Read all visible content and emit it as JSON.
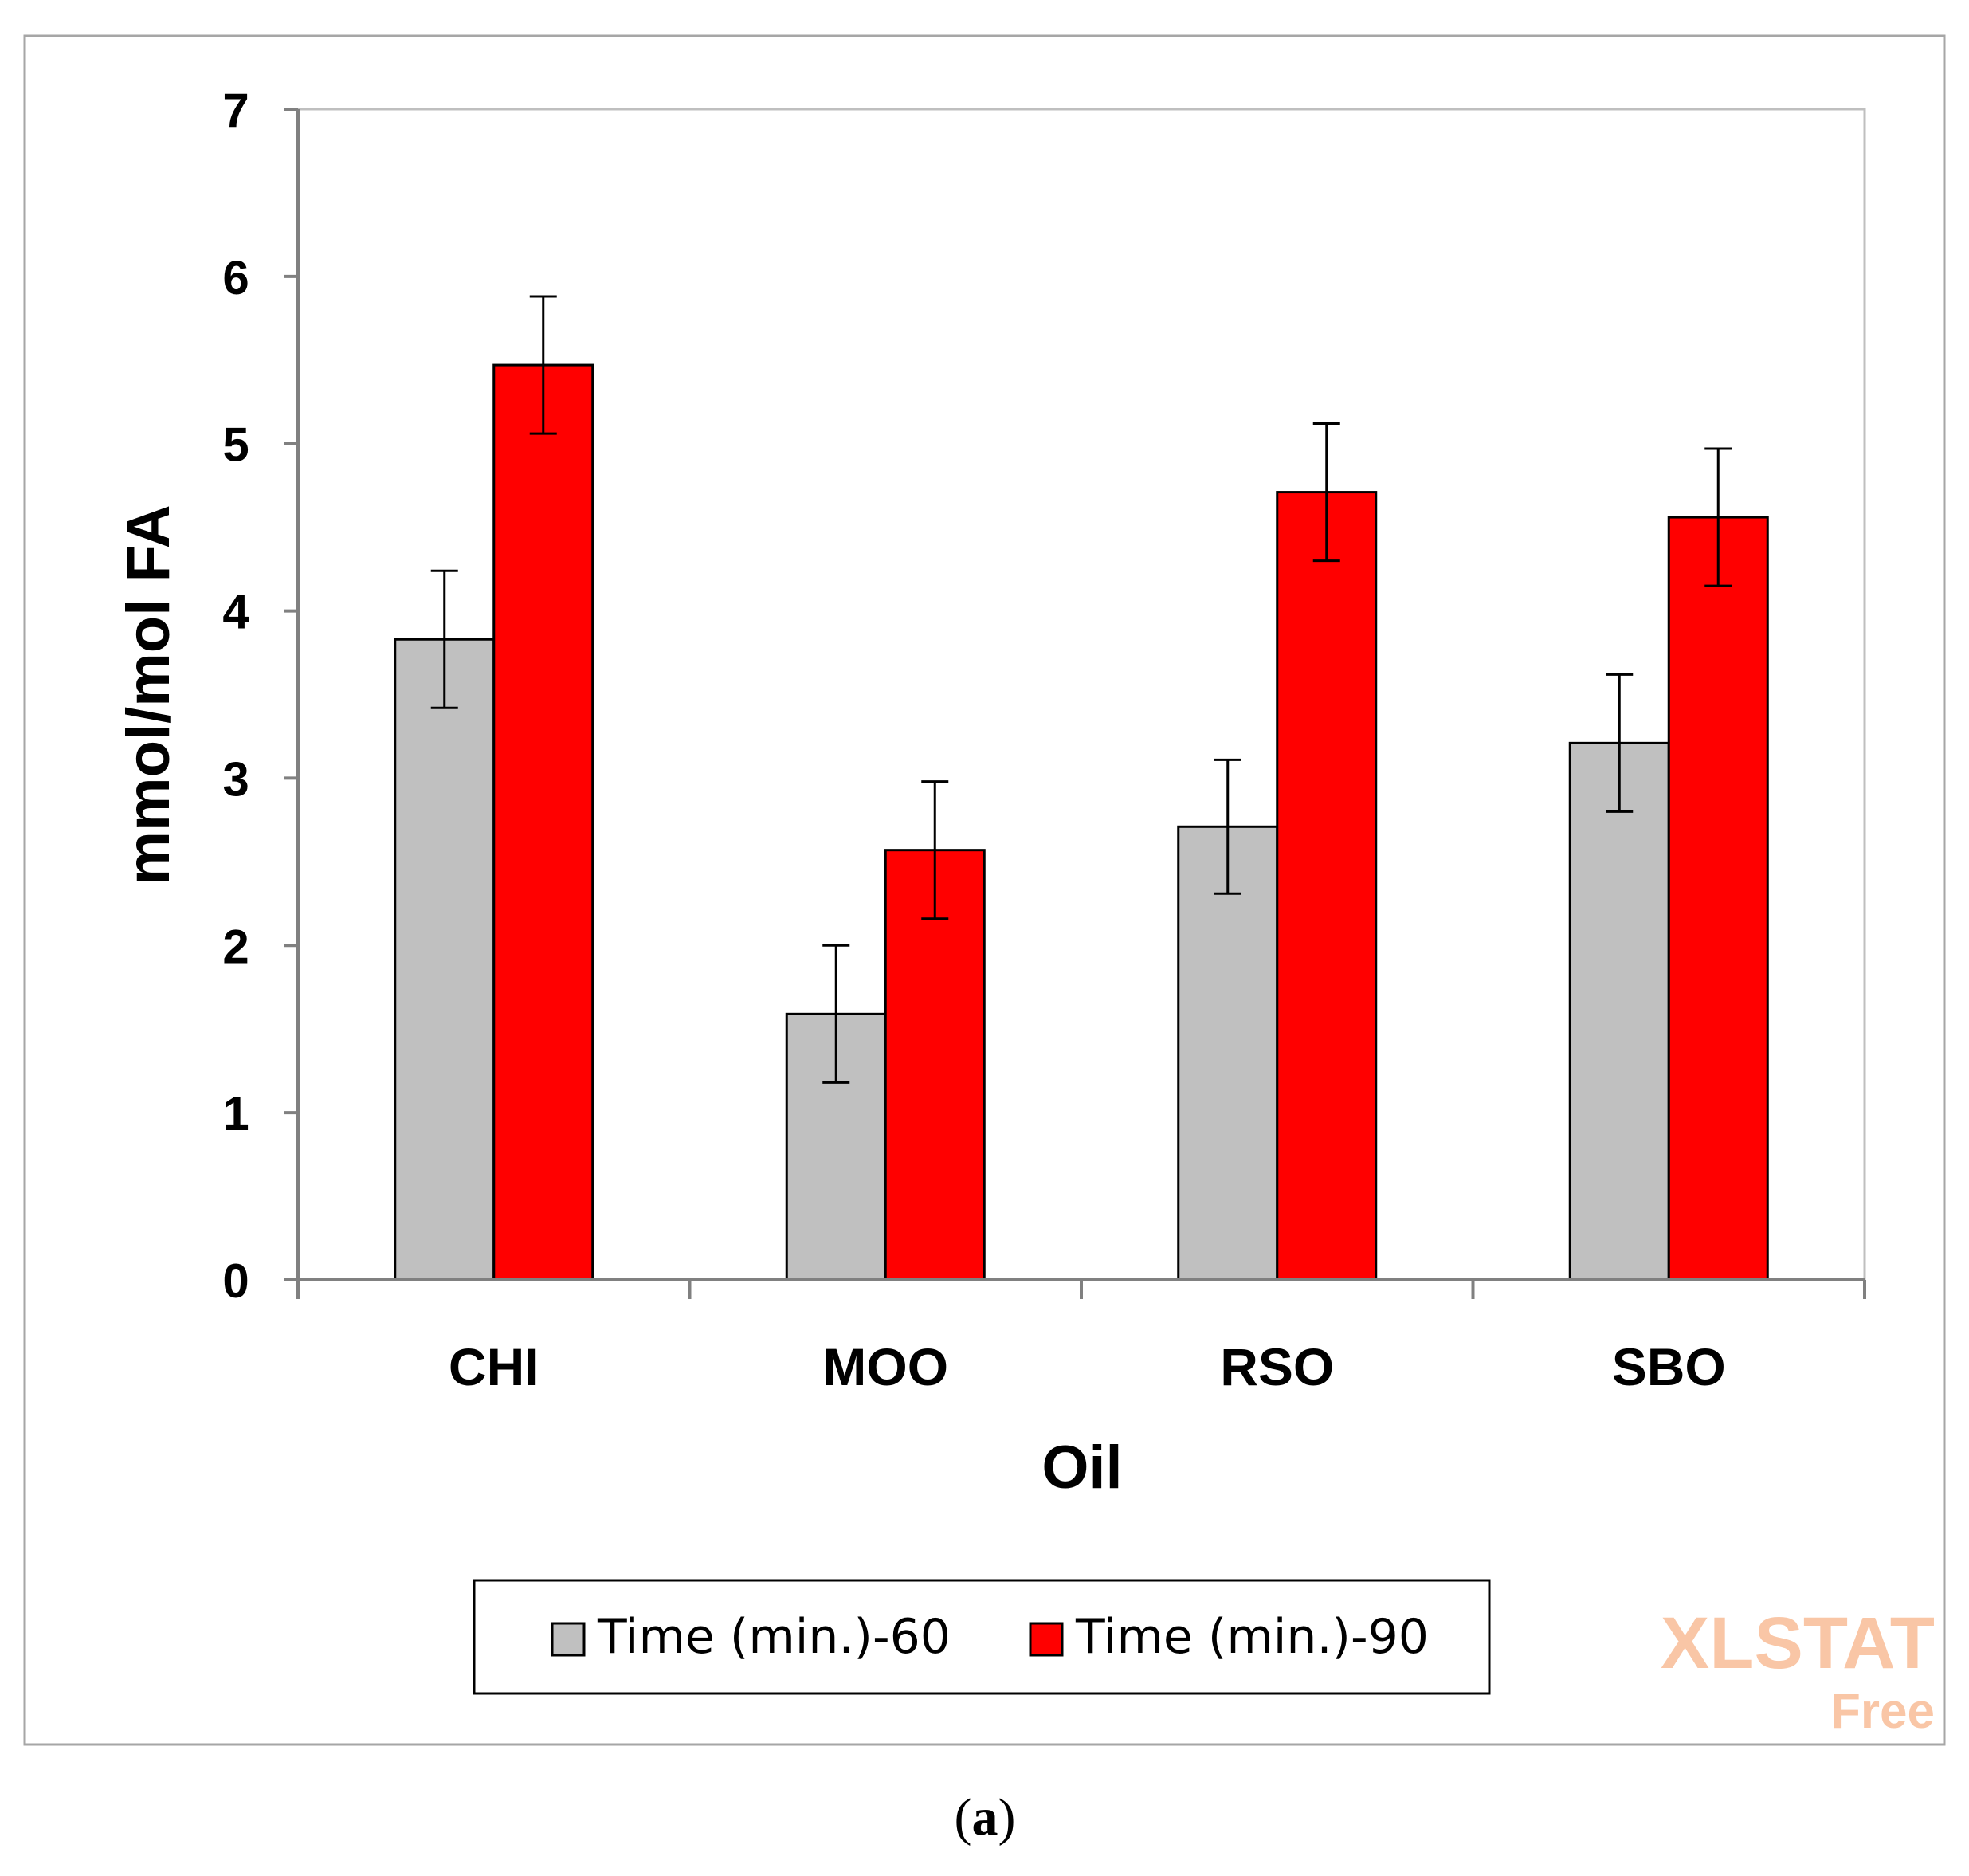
{
  "chart_data": {
    "type": "bar",
    "xlabel": "Oil",
    "ylabel": "mmol/mol FA",
    "ylim": [
      0,
      7
    ],
    "yticks": [
      0,
      1,
      2,
      3,
      4,
      5,
      6,
      7
    ],
    "categories": [
      "CHI",
      "MOO",
      "RSO",
      "SBO"
    ],
    "series": [
      {
        "name": "Time (min.)-60",
        "color": "#c0c0c0",
        "values": [
          3.83,
          1.59,
          2.71,
          3.21
        ],
        "errors": [
          0.41,
          0.41,
          0.4,
          0.41
        ]
      },
      {
        "name": "Time (min.)-90",
        "color": "#ff0000",
        "values": [
          5.47,
          2.57,
          4.71,
          4.56
        ],
        "errors": [
          0.41,
          0.41,
          0.41,
          0.41
        ]
      }
    ],
    "legend_position": "bottom",
    "grid": false
  },
  "watermark": {
    "line1": "XLSTAT",
    "line2": "Free",
    "color": "#f9c6a6"
  },
  "caption": {
    "paren_open": "(",
    "letter": "a",
    "paren_close": ")"
  }
}
